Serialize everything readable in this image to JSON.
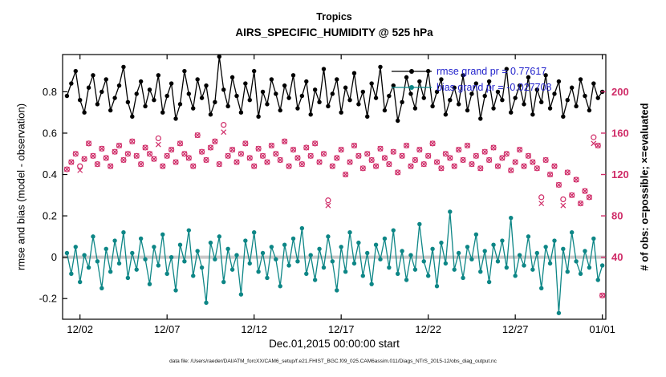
{
  "titles": {
    "line1": "Tropics",
    "line2": "AIRS_SPECIFIC_HUMIDITY @ 525 hPa"
  },
  "labels": {
    "xlabel": "Dec.01,2015 00:00:00 start",
    "ylabel_left": "rmse and bias (model - observation)",
    "ylabel_right": "# of obs: o=possible; ×=evaluated",
    "footer": "data file: /Users/raeder/DAI/ATM_forcXX/CAM6_setup/f.e21.FHIST_BGC.f09_025.CAM6assim.011/Diags_NTrS_2015-12/obs_diag_output.nc"
  },
  "legend": [
    {
      "label": "rmse grand pr = 0.77617",
      "color": "#000000"
    },
    {
      "label": "bias grand pr = -0.027708",
      "color": "#0d8686"
    }
  ],
  "colors": {
    "rmse": "#000000",
    "bias": "#0d8686",
    "obs": "#cf2b67",
    "legend_text": "#2222cc",
    "zero_line": "#c8c8c8"
  },
  "chart_data": {
    "type": "line",
    "title": "Tropics - AIRS_SPECIFIC_HUMIDITY @ 525 hPa",
    "x_axis": {
      "label": "Dec.01,2015 00:00:00 start",
      "xlim": [
        0,
        31.2
      ],
      "tick_days": [
        1,
        6,
        11,
        16,
        21,
        26,
        31
      ],
      "tick_labels": [
        "12/02",
        "12/07",
        "12/12",
        "12/17",
        "12/22",
        "12/27",
        "01/01"
      ],
      "x_start_day": 0.25,
      "x_step_days": 0.25,
      "n_points": 124
    },
    "y_axis_left": {
      "label": "rmse and bias (model - observation)",
      "ticks": [
        -0.2,
        0,
        0.2,
        0.4,
        0.6,
        0.8
      ],
      "ylim": [
        -0.3,
        0.98
      ]
    },
    "y_axis_right": {
      "label": "# of obs: o=possible; ×=evaluated",
      "ticks": [
        40,
        80,
        120,
        160,
        200
      ],
      "map": {
        "scale": 200,
        "offset": 40
      }
    },
    "annotations": {
      "zero_line": 0,
      "rmse_grand_pr": 0.77617,
      "bias_grand_pr": -0.027708
    },
    "series": [
      {
        "name": "obs_possible",
        "axis": "right",
        "marker": "open-circle",
        "color": "#cf2b67",
        "values": [
          125,
          132,
          140,
          128,
          135,
          150,
          138,
          130,
          145,
          136,
          128,
          142,
          148,
          134,
          140,
          152,
          138,
          130,
          146,
          140,
          135,
          155,
          128,
          138,
          144,
          132,
          150,
          140,
          136,
          128,
          158,
          142,
          134,
          146,
          152,
          130,
          168,
          138,
          144,
          132,
          140,
          150,
          136,
          128,
          145,
          138,
          132,
          148,
          140,
          134,
          152,
          128,
          144,
          136,
          130,
          146,
          138,
          150,
          132,
          140,
          95,
          128,
          136,
          144,
          120,
          132,
          148,
          138,
          126,
          140,
          134,
          128,
          145,
          136,
          130,
          142,
          122,
          138,
          148,
          128,
          134,
          144,
          130,
          138,
          150,
          132,
          126,
          140,
          136,
          128,
          144,
          134,
          148,
          130,
          138,
          126,
          142,
          134,
          146,
          128,
          136,
          140,
          124,
          132,
          144,
          128,
          138,
          132,
          126,
          98,
          134,
          120,
          128,
          110,
          96,
          122,
          100,
          115,
          92,
          104,
          98,
          156,
          148,
          3
        ]
      },
      {
        "name": "obs_evaluated",
        "axis": "right",
        "marker": "x-cross",
        "color": "#cf2b67",
        "values": [
          125,
          132,
          140,
          124,
          135,
          150,
          138,
          130,
          145,
          136,
          128,
          142,
          148,
          134,
          140,
          152,
          138,
          130,
          146,
          140,
          135,
          149,
          128,
          138,
          144,
          132,
          150,
          140,
          136,
          128,
          158,
          142,
          134,
          146,
          152,
          130,
          161,
          138,
          144,
          132,
          140,
          150,
          136,
          128,
          145,
          138,
          132,
          148,
          140,
          134,
          152,
          128,
          144,
          136,
          130,
          146,
          138,
          150,
          132,
          140,
          90,
          128,
          136,
          144,
          120,
          132,
          148,
          138,
          126,
          140,
          134,
          128,
          145,
          136,
          130,
          142,
          122,
          138,
          148,
          128,
          134,
          144,
          130,
          138,
          150,
          132,
          126,
          140,
          136,
          128,
          144,
          134,
          148,
          130,
          138,
          126,
          142,
          134,
          146,
          128,
          136,
          140,
          124,
          132,
          144,
          128,
          138,
          132,
          126,
          92,
          134,
          120,
          128,
          110,
          90,
          122,
          100,
          115,
          92,
          104,
          98,
          150,
          148,
          3
        ]
      },
      {
        "name": "bias",
        "axis": "left",
        "marker": "filled-circle",
        "color": "#0d8686",
        "values": [
          0.02,
          -0.08,
          0.05,
          -0.12,
          0.01,
          -0.05,
          0.1,
          -0.02,
          -0.15,
          0.04,
          -0.07,
          0.08,
          -0.03,
          0.12,
          -0.1,
          0.02,
          -0.06,
          0.09,
          -0.01,
          -0.13,
          0.05,
          -0.04,
          0.11,
          -0.08,
          0.0,
          -0.16,
          0.06,
          -0.02,
          0.13,
          -0.09,
          0.03,
          -0.05,
          -0.22,
          0.07,
          -0.01,
          0.1,
          -0.12,
          0.04,
          -0.06,
          0.01,
          -0.18,
          0.08,
          -0.03,
          0.12,
          -0.07,
          0.02,
          -0.1,
          0.05,
          -0.01,
          -0.14,
          0.06,
          -0.04,
          0.09,
          -0.02,
          0.14,
          -0.08,
          0.01,
          -0.11,
          0.04,
          -0.05,
          0.1,
          -0.02,
          -0.16,
          0.05,
          -0.07,
          0.12,
          -0.03,
          0.07,
          -0.09,
          0.02,
          -0.13,
          0.06,
          -0.01,
          0.09,
          -0.05,
          0.13,
          -0.08,
          0.03,
          -0.11,
          0.01,
          -0.06,
          0.16,
          -0.02,
          -0.09,
          0.04,
          -0.14,
          0.07,
          -0.03,
          0.22,
          -0.06,
          0.02,
          -0.1,
          0.05,
          -0.01,
          0.11,
          -0.07,
          0.03,
          -0.12,
          0.06,
          -0.02,
          0.08,
          -0.05,
          0.19,
          -0.09,
          0.01,
          -0.04,
          0.1,
          -0.06,
          0.02,
          -0.15,
          0.05,
          -0.03,
          0.08,
          -0.27,
          0.04,
          -0.07,
          0.12,
          -0.02,
          -0.08,
          0.03,
          -0.05,
          0.09,
          -0.11,
          -0.04
        ]
      },
      {
        "name": "rmse",
        "axis": "left",
        "marker": "filled-circle",
        "color": "#000000",
        "values": [
          0.78,
          0.84,
          0.9,
          0.76,
          0.7,
          0.82,
          0.88,
          0.74,
          0.8,
          0.86,
          0.71,
          0.77,
          0.83,
          0.92,
          0.75,
          0.68,
          0.79,
          0.85,
          0.73,
          0.81,
          0.76,
          0.88,
          0.7,
          0.78,
          0.84,
          0.67,
          0.74,
          0.9,
          0.79,
          0.72,
          0.86,
          0.77,
          0.83,
          0.69,
          0.75,
          0.97,
          0.81,
          0.73,
          0.87,
          0.78,
          0.7,
          0.84,
          0.76,
          0.9,
          0.68,
          0.8,
          0.74,
          0.86,
          0.79,
          0.71,
          0.83,
          0.77,
          0.88,
          0.72,
          0.78,
          0.85,
          0.69,
          0.81,
          0.75,
          0.91,
          0.73,
          0.79,
          0.86,
          0.7,
          0.82,
          0.76,
          0.89,
          0.74,
          0.8,
          0.68,
          0.84,
          0.77,
          0.92,
          0.71,
          0.78,
          0.83,
          0.66,
          0.75,
          0.87,
          0.79,
          0.72,
          0.85,
          0.77,
          0.9,
          0.73,
          0.8,
          0.86,
          0.69,
          0.76,
          0.82,
          0.74,
          0.88,
          0.71,
          0.79,
          0.84,
          0.67,
          0.78,
          0.85,
          0.72,
          0.8,
          0.76,
          0.91,
          0.7,
          0.77,
          0.83,
          0.74,
          0.87,
          0.69,
          0.81,
          0.75,
          0.88,
          0.72,
          0.79,
          0.85,
          0.68,
          0.76,
          0.82,
          0.73,
          0.86,
          0.78,
          0.71,
          0.84,
          0.77,
          0.8
        ]
      }
    ]
  }
}
